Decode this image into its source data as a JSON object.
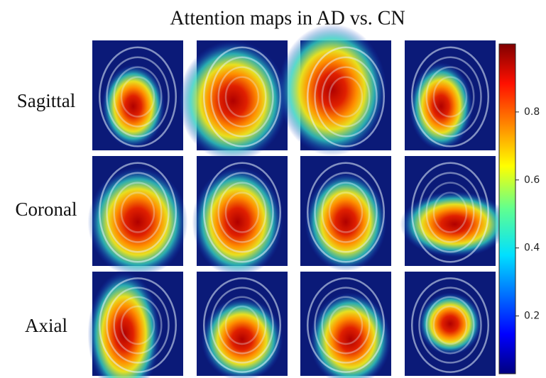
{
  "title": "Attention maps in AD vs. CN",
  "rows": [
    "Sagittal",
    "Coronal",
    "Axial"
  ],
  "colorbar": {
    "lim": [
      0.03,
      1.0
    ],
    "ticks": [
      0.2,
      0.4,
      0.6,
      0.8
    ]
  }
}
